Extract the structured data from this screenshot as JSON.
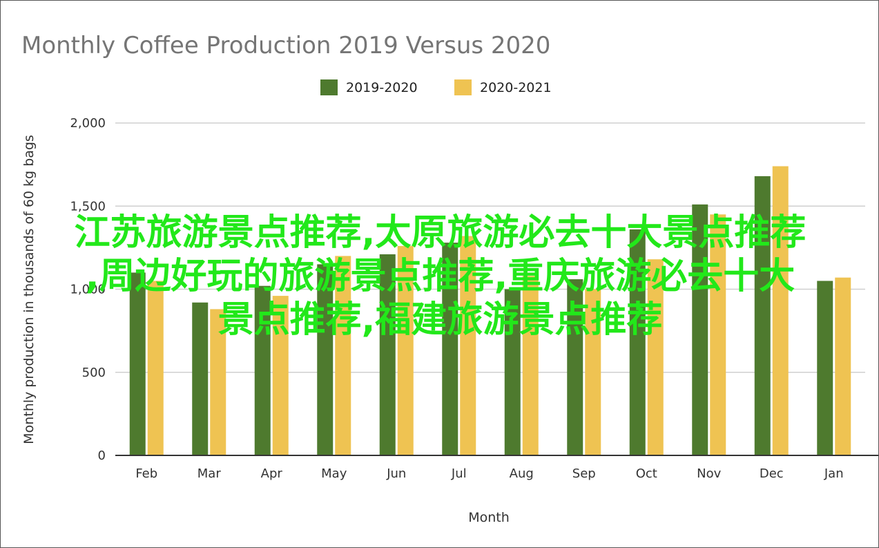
{
  "chart_data": {
    "type": "bar",
    "title": "Monthly Coffee Production 2019 Versus 2020",
    "xlabel": "Month",
    "ylabel": "Monthly production in thousands of 60 kg bags",
    "categories": [
      "Feb",
      "Mar",
      "Apr",
      "May",
      "Jun",
      "Jul",
      "Aug",
      "Sep",
      "Oct",
      "Nov",
      "Dec",
      "Jan"
    ],
    "series": [
      {
        "name": "2019-2020",
        "color": "#4e7a2e",
        "values": [
          1100,
          920,
          1020,
          1150,
          1210,
          1280,
          1000,
          1060,
          1360,
          1510,
          1680,
          1050
        ]
      },
      {
        "name": "2020-2021",
        "color": "#efc352",
        "values": [
          1050,
          880,
          960,
          1200,
          1260,
          1320,
          1080,
          1000,
          1180,
          1450,
          1740,
          1070
        ]
      }
    ],
    "ylim": [
      0,
      2000
    ],
    "yticks": [
      0,
      500,
      1000,
      1500,
      2000
    ],
    "ytick_labels": [
      "0",
      "500",
      "1,000",
      "1,500",
      "2,000"
    ],
    "grid": true,
    "legend_position": "top-center"
  },
  "overlay_text": {
    "line1": "江苏旅游景点推荐,太原旅游必去十大景点推荐",
    "line2": ",周边好玩的旅游景点推荐,重庆旅游必去十大",
    "line3": "景点推荐,福建旅游景点推荐",
    "color": "#22e81a"
  }
}
